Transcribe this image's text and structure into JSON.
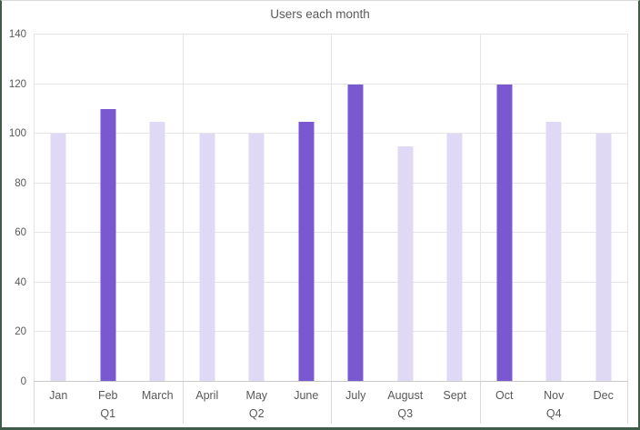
{
  "frame": {
    "border_color": "#3E5C49",
    "top_border_color": "#D9D9D9",
    "background": "#FFFFFF"
  },
  "chart_data": {
    "type": "bar",
    "title": "Users each month",
    "categories": [
      "Jan",
      "Feb",
      "March",
      "April",
      "May",
      "June",
      "July",
      "August",
      "Sept",
      "Oct",
      "Nov",
      "Dec"
    ],
    "values": [
      100,
      110,
      105,
      100,
      100,
      105,
      120,
      95,
      100,
      120,
      105,
      100
    ],
    "highlight": [
      false,
      true,
      false,
      false,
      false,
      true,
      true,
      false,
      false,
      true,
      false,
      false
    ],
    "groups": [
      {
        "label": "Q1",
        "span": 3
      },
      {
        "label": "Q2",
        "span": 3
      },
      {
        "label": "Q3",
        "span": 3
      },
      {
        "label": "Q4",
        "span": 3
      }
    ],
    "xlabel": "",
    "ylabel": "",
    "ylim": [
      0,
      140
    ],
    "yticks": [
      0,
      20,
      40,
      60,
      80,
      100,
      120,
      140
    ],
    "grid": true,
    "legend": false,
    "group_separators": true,
    "colors": {
      "bar_default": "#E0D9F6",
      "bar_highlight": "#7A58D0",
      "gridline": "#E5E5E5",
      "axis_line": "#C9C9C9",
      "divider": "#D9D9D9",
      "text": "#595959"
    }
  }
}
